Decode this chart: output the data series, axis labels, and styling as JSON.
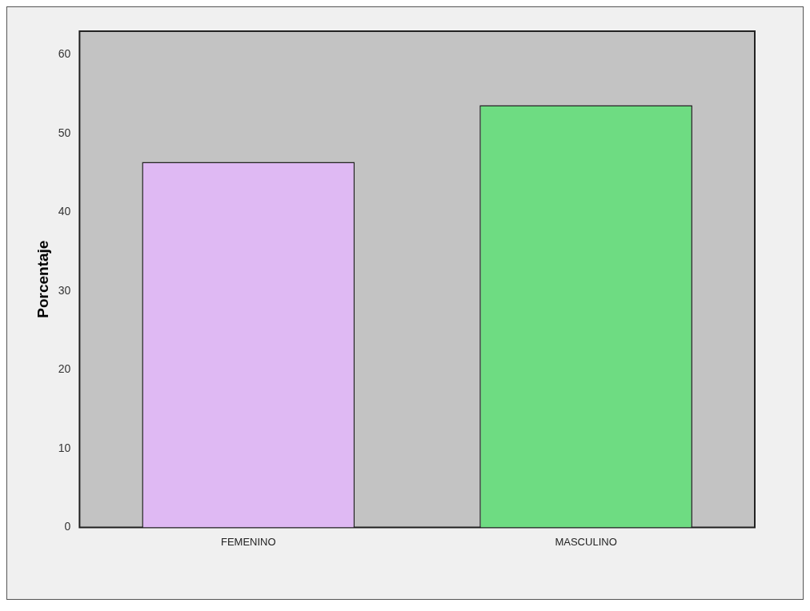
{
  "chart_data": {
    "type": "bar",
    "ylabel": "Porcentaje",
    "categories": [
      "FEMENINO",
      "MASCULINO"
    ],
    "values": [
      46.4,
      53.6
    ],
    "colors": [
      "#dfb9f3",
      "#6edc82"
    ],
    "ylim": [
      0,
      63
    ],
    "yticks": [
      0,
      10,
      20,
      30,
      40,
      50,
      60
    ],
    "grid": false,
    "legend": false
  }
}
